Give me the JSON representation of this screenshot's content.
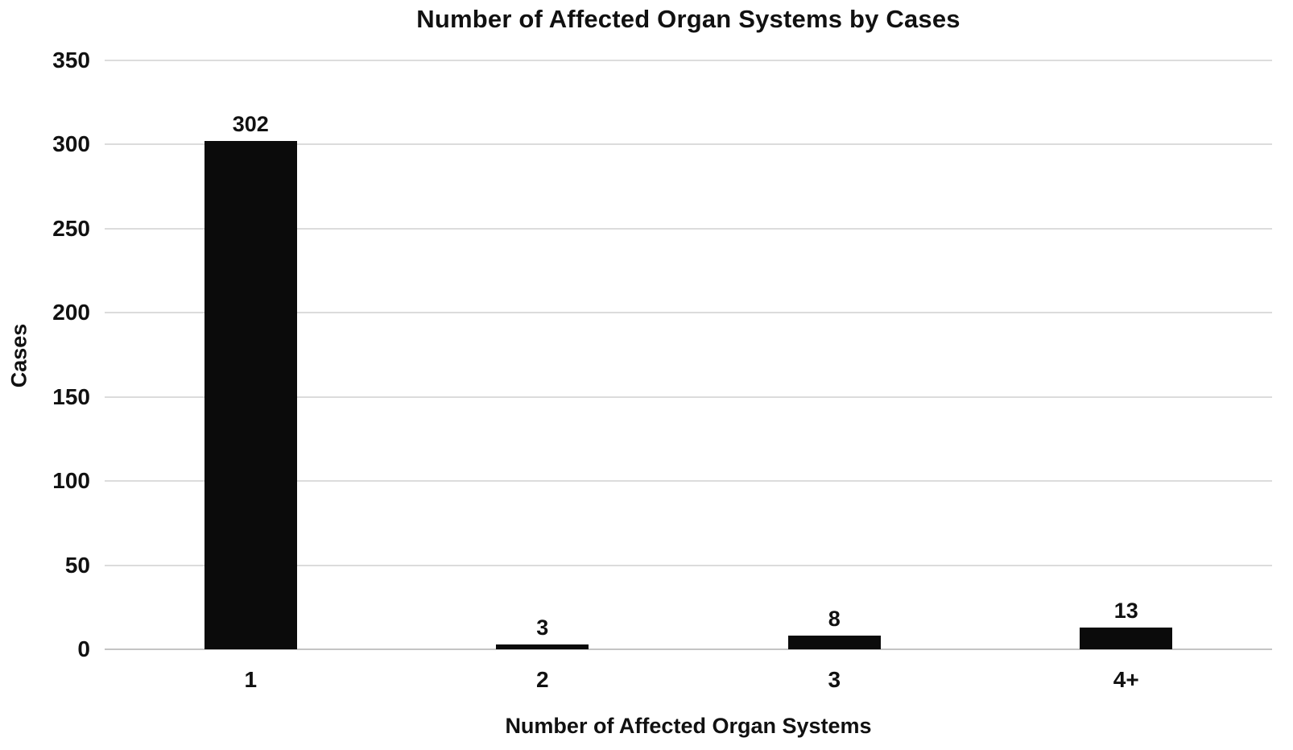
{
  "chart_data": {
    "type": "bar",
    "title": "Number of Affected Organ Systems by Cases",
    "xlabel": "Number of Affected Organ Systems",
    "ylabel": "Cases",
    "categories": [
      "1",
      "2",
      "3",
      "4+"
    ],
    "values": [
      302,
      3,
      8,
      13
    ],
    "ylim": [
      0,
      350
    ],
    "yticks": [
      0,
      50,
      100,
      150,
      200,
      250,
      300,
      350
    ],
    "bar_color": "#0b0b0b",
    "gridline_color": "#dcdcdc",
    "background_color": "#ffffff",
    "grid": "horizontal",
    "legend": "none",
    "data_labels": true
  }
}
